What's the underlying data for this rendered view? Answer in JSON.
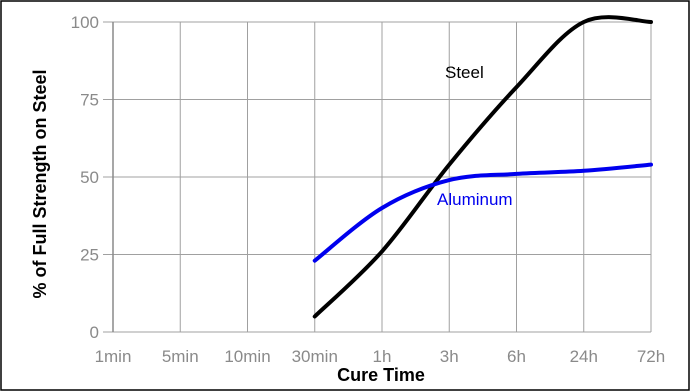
{
  "chart_data": {
    "type": "line",
    "xlabel": "Cure Time",
    "ylabel": "% of Full Strength on Steel",
    "x_categories": [
      "1min",
      "5min",
      "10min",
      "30min",
      "1h",
      "3h",
      "6h",
      "24h",
      "72h"
    ],
    "y_ticks": [
      0,
      25,
      50,
      75,
      100
    ],
    "ylim": [
      0,
      100
    ],
    "grid": true,
    "series": [
      {
        "name": "Steel",
        "color": "#000000",
        "points": [
          {
            "x": "30min",
            "y": 5
          },
          {
            "x": "1h",
            "y": 26
          },
          {
            "x": "3h",
            "y": 54
          },
          {
            "x": "6h",
            "y": 79
          },
          {
            "x": "24h",
            "y": 100
          },
          {
            "x": "72h",
            "y": 100
          }
        ]
      },
      {
        "name": "Aluminum",
        "color": "#0000ee",
        "points": [
          {
            "x": "30min",
            "y": 23
          },
          {
            "x": "1h",
            "y": 40
          },
          {
            "x": "3h",
            "y": 49
          },
          {
            "x": "6h",
            "y": 51
          },
          {
            "x": "24h",
            "y": 52
          },
          {
            "x": "72h",
            "y": 54
          }
        ]
      }
    ]
  }
}
